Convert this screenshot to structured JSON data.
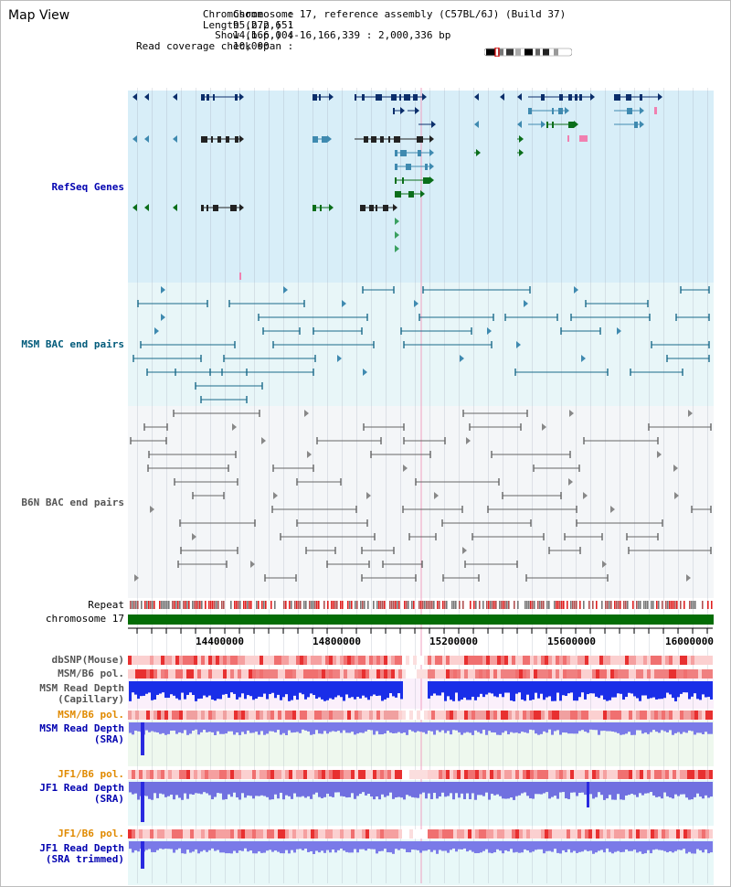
{
  "title": "Map View",
  "info": {
    "labels": "Chromosome    :\nLength (b.p.) :\n  Show (b.p.) :\nRead coverage check span :",
    "values": "Chromosome 17, reference assembly (C57BL/6J) (Build 37)\n95,272,651\n14,166,004-16,166,339 : 2,000,336 bp\n10,000"
  },
  "tracks": {
    "refseq": "RefSeq Genes",
    "msm_bac": "MSM BAC end pairs",
    "b6n_bac": "B6N BAC end pairs",
    "repeat": "Repeat",
    "chromosome": "chromosome 17",
    "dbsnp": "dbSNP(Mouse)",
    "msm_b6_pol_1": "MSM/B6 pol.",
    "msm_read_depth_cap": "MSM Read Depth\n(Capillary)",
    "msm_b6_pol_2": "MSM/B6 pol.",
    "msm_read_depth_sra": "MSM Read Depth\n(SRA)",
    "jf1_b6_pol_1": "JF1/B6 pol.",
    "jf1_read_depth_sra": "JF1 Read Depth\n(SRA)",
    "jf1_b6_pol_2": "JF1/B6 pol.",
    "jf1_read_depth_trim": "JF1 Read Depth\n(SRA trimmed)"
  },
  "ruler": {
    "ticks": [
      "14400000",
      "14800000",
      "15200000",
      "15600000",
      "16000000"
    ]
  },
  "colors": {
    "refseq_bg": "#d8eef8",
    "msm_bac_bg": "#e8f6f8",
    "b6n_bac_bg": "#f4f6f8",
    "gene_dark": "#0b2e6b",
    "gene_mid": "#3f8ab0",
    "gene_green": "#0b6e1a",
    "chromosome_bar": "#046d06",
    "label_blue": "#0000b0",
    "label_teal": "#005a7a",
    "label_gray": "#555555",
    "label_orange": "#e08a00"
  }
}
